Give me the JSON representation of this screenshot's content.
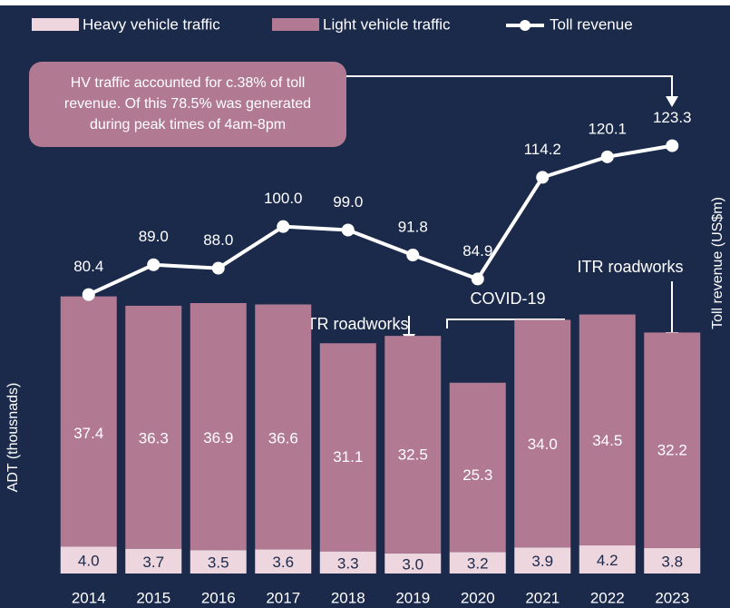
{
  "chart_data": {
    "type": "bar",
    "categories": [
      "2014",
      "2015",
      "2016",
      "2017",
      "2018",
      "2019",
      "2020",
      "2021",
      "2022",
      "2023"
    ],
    "series": [
      {
        "name": "Heavy vehicle traffic",
        "color": "#eed6df",
        "type": "bar",
        "values": [
          4.0,
          3.7,
          3.5,
          3.6,
          3.3,
          3.0,
          3.2,
          3.9,
          4.2,
          3.8
        ],
        "value_labels": [
          "4.0",
          "3.7",
          "3.5",
          "3.6",
          "3.3",
          "3.0",
          "3.2",
          "3.9",
          "4.2",
          "3.8"
        ]
      },
      {
        "name": "Light vehicle traffic",
        "color": "#b17a92",
        "type": "bar",
        "values": [
          37.4,
          36.3,
          36.9,
          36.6,
          31.1,
          32.5,
          25.3,
          34.0,
          34.5,
          32.2
        ],
        "value_labels": [
          "37.4",
          "36.3",
          "36.9",
          "36.6",
          "31.1",
          "32.5",
          "25.3",
          "34.0",
          "34.5",
          "32.2"
        ]
      },
      {
        "name": "Toll revenue",
        "color": "#ffffff",
        "type": "line",
        "axis": "y2",
        "values": [
          80.4,
          89.0,
          88.0,
          100.0,
          99.0,
          91.8,
          84.9,
          114.2,
          120.1,
          123.3
        ],
        "value_labels": [
          "80.4",
          "89.0",
          "88.0",
          "100.0",
          "99.0",
          "91.8",
          "84.9",
          "114.2",
          "120.1",
          "123.3"
        ]
      }
    ],
    "ylabel": "ADT (thousnads)",
    "y2label": "Toll revenue (US$m)",
    "ylim": [
      0,
      85
    ],
    "y2lim": [
      0,
      164
    ],
    "stacked": true,
    "callout": [
      "HV traffic accounted for c.38% of toll",
      "revenue. Of this 78.5% was generated",
      "during peak times of 4am-8pm"
    ],
    "annotations": [
      "ITR roadworks",
      "COVID-19",
      "ITR roadworks"
    ]
  }
}
